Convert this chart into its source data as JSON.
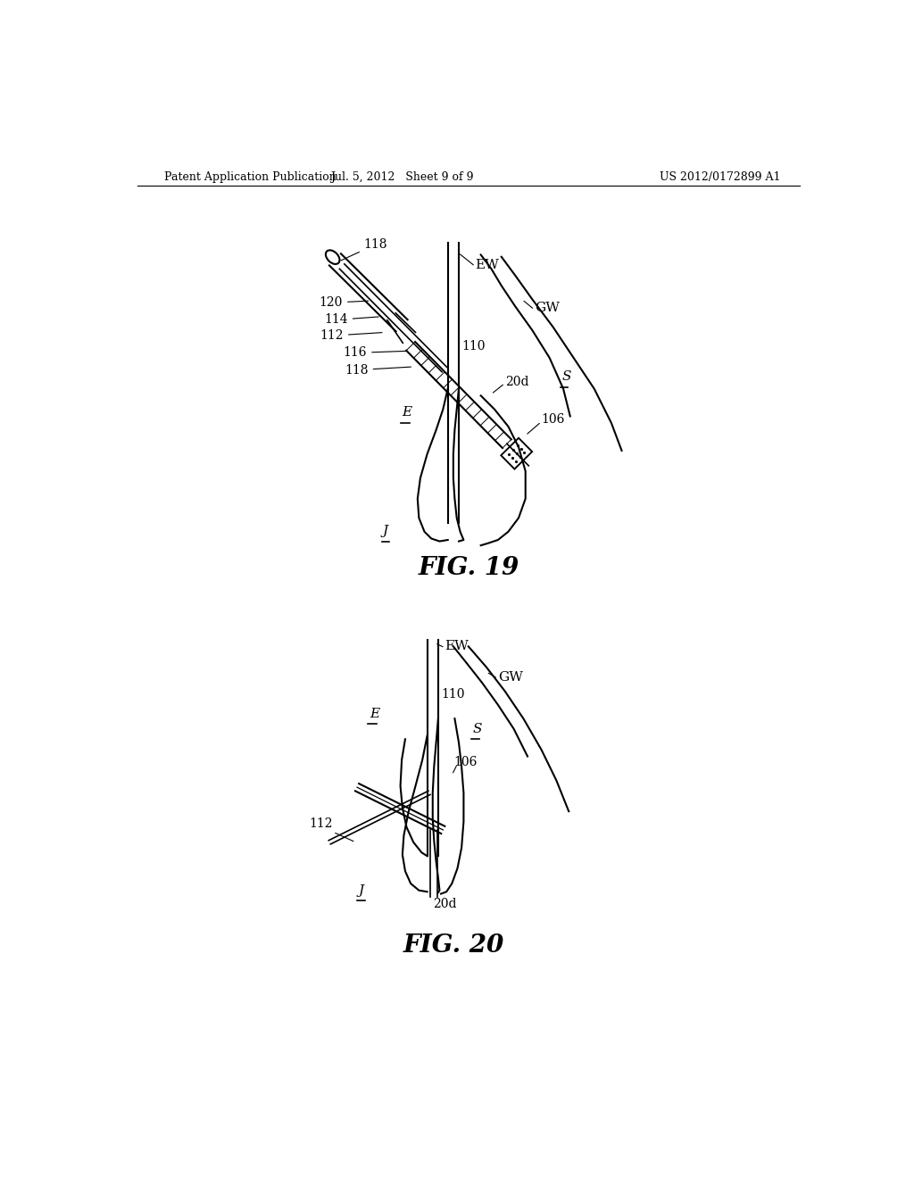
{
  "bg_color": "#ffffff",
  "header_left": "Patent Application Publication",
  "header_mid": "Jul. 5, 2012   Sheet 9 of 9",
  "header_right": "US 2012/0172899 A1",
  "fig19_title": "FIG. 19",
  "fig20_title": "FIG. 20"
}
